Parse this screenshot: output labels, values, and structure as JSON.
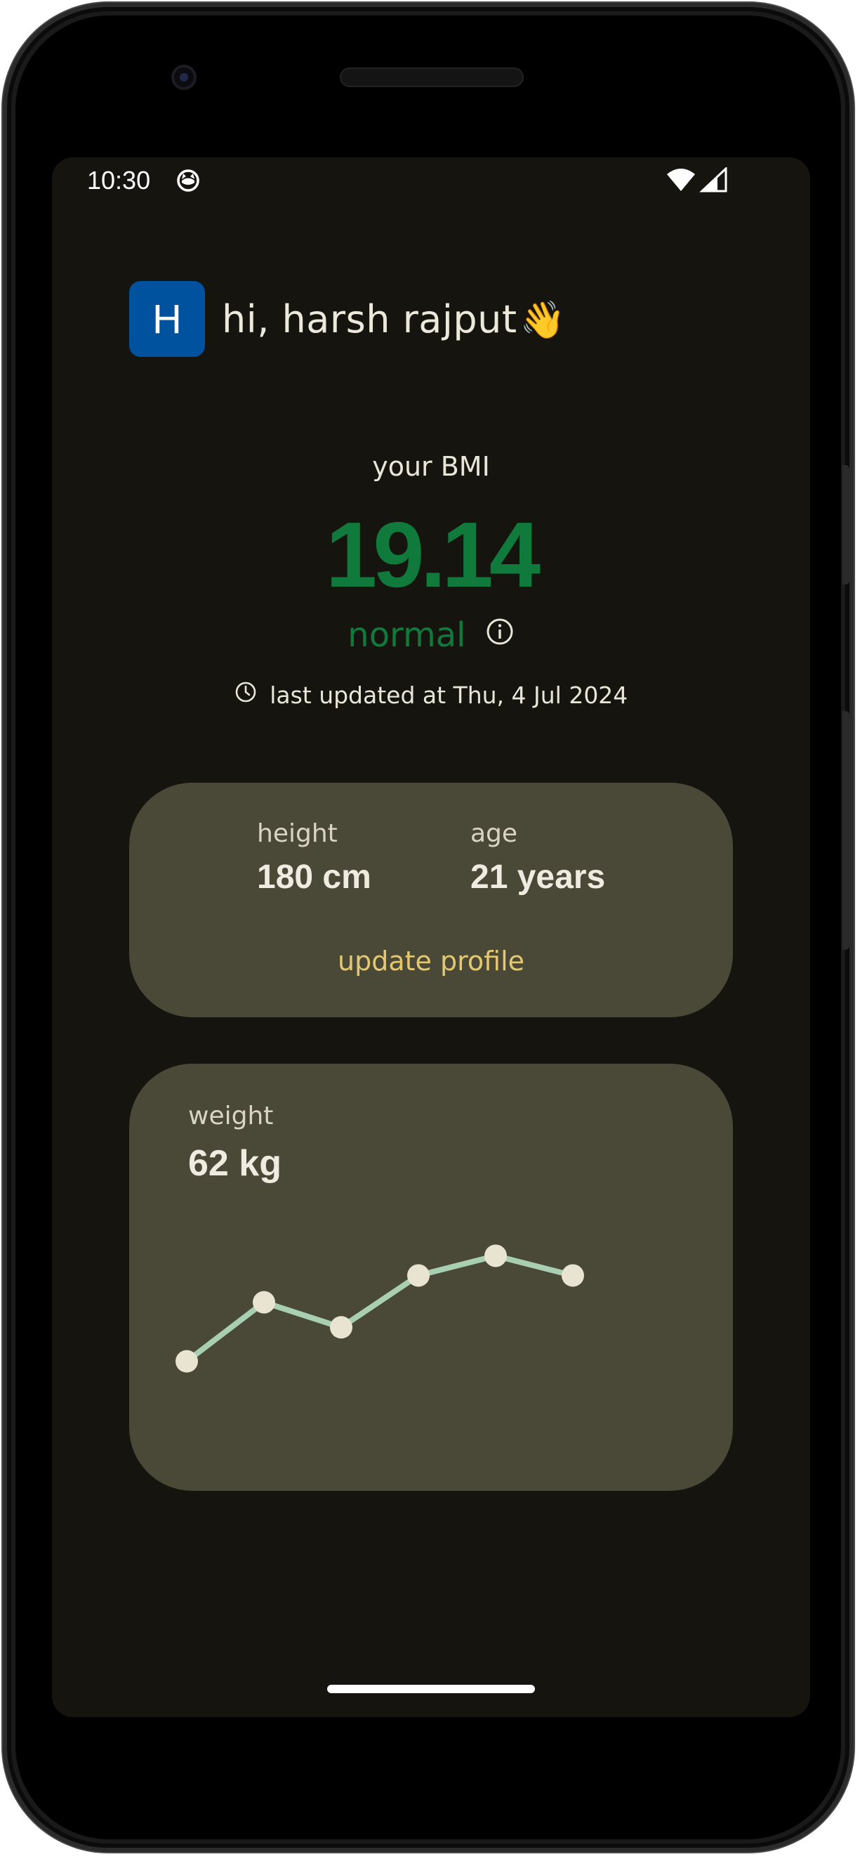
{
  "status_bar": {
    "time": "10:30",
    "app_icon": "cat-face-icon",
    "wifi_icon": "wifi-icon",
    "signal_icon": "cell-signal-icon"
  },
  "greeting": {
    "avatar_initial": "H",
    "text": "hi, harsh rajput",
    "emoji": "👋",
    "avatar_color": "#00519e"
  },
  "bmi": {
    "label": "your BMI",
    "value": "19.14",
    "status": "normal",
    "status_color": "#0f7a3c",
    "info_icon": "info-circle-icon",
    "updated_text": "last updated at Thu, 4 Jul 2024",
    "clock_icon": "clock-icon"
  },
  "profile": {
    "height_label": "height",
    "height_value": "180 cm",
    "age_label": "age",
    "age_value": "21 years",
    "update_link": "update profile",
    "link_color": "#e2c872"
  },
  "weight": {
    "label": "weight",
    "value": "62 kg"
  },
  "chart_data": {
    "type": "line",
    "title": "",
    "xlabel": "",
    "ylabel": "",
    "x": [
      1,
      2,
      3,
      4,
      5,
      6
    ],
    "values": [
      55,
      58.3,
      56.9,
      59.8,
      60.9,
      59.8
    ],
    "ylim": [
      52,
      63
    ],
    "grid": false,
    "line_color": "#a8cfb2",
    "point_color": "#e9e3d2"
  },
  "theme": {
    "background": "#15140e",
    "card": "#4a4837",
    "text": "#e9e5d8"
  }
}
